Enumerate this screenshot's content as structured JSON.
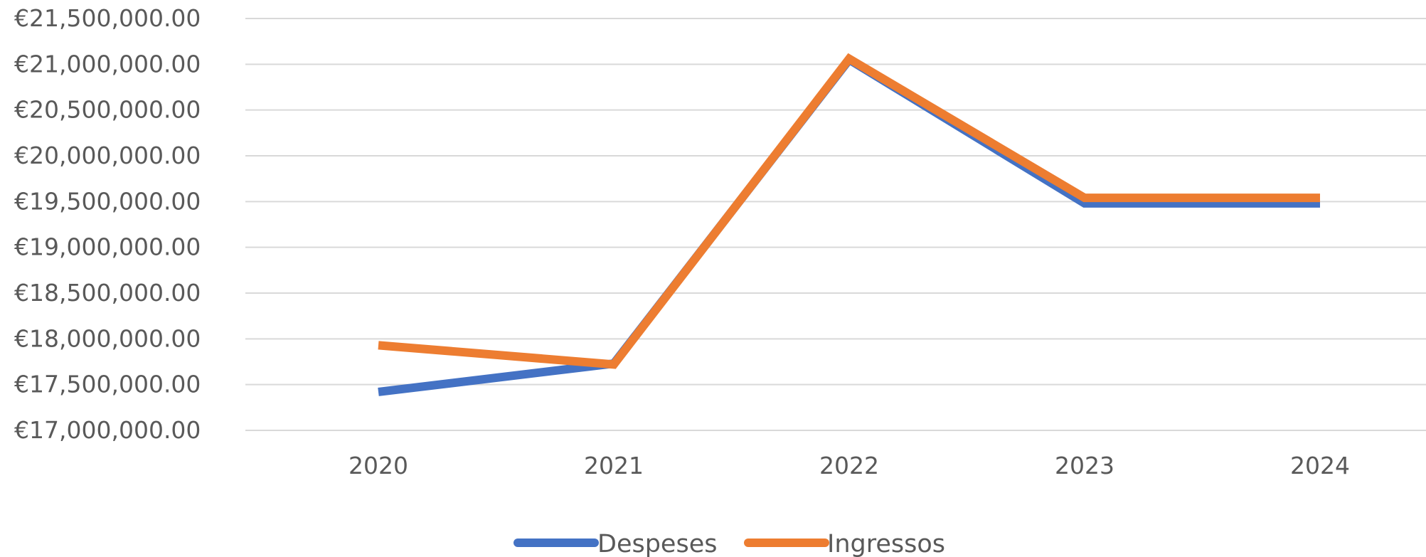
{
  "chart_data": {
    "type": "line",
    "categories": [
      "2020",
      "2021",
      "2022",
      "2023",
      "2024"
    ],
    "series": [
      {
        "name": "Despeses",
        "color": "#4472C4",
        "values": [
          17420000,
          17730000,
          21050000,
          19480000,
          19480000
        ]
      },
      {
        "name": "Ingressos",
        "color": "#ED7D31",
        "values": [
          17930000,
          17720000,
          21060000,
          19540000,
          19540000
        ]
      }
    ],
    "ylim": [
      17000000,
      21500000
    ],
    "yticks": [
      17000000,
      17500000,
      18000000,
      18500000,
      19000000,
      19500000,
      20000000,
      20500000,
      21000000,
      21500000
    ],
    "ytick_labels": [
      "€17,000,000.00",
      "€17,500,000.00",
      "€18,000,000.00",
      "€18,500,000.00",
      "€19,000,000.00",
      "€19,500,000.00",
      "€20,000,000.00",
      "€20,500,000.00",
      "€21,000,000.00",
      "€21,500,000.00"
    ],
    "grid": true,
    "legend_position": "bottom",
    "gridline_color": "#D9D9D9",
    "text_color": "#595959"
  }
}
